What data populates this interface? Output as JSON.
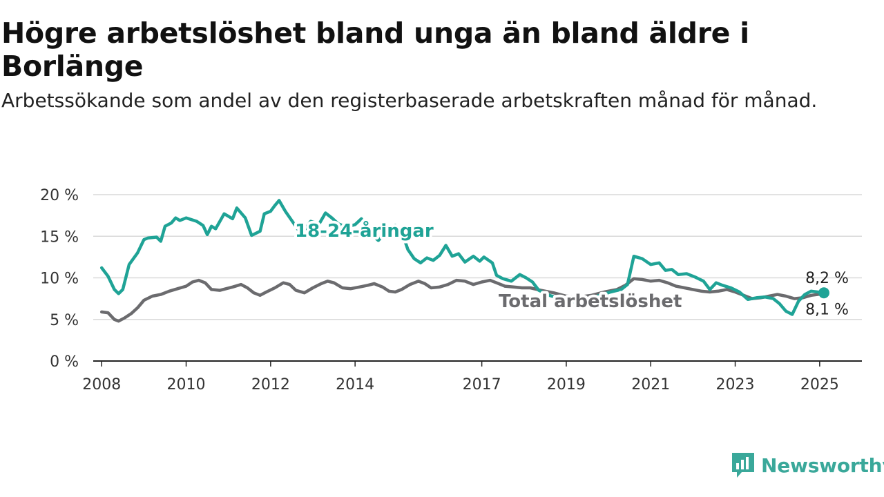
{
  "title": "Högre arbetslöshet bland unga än bland äldre i Borlänge",
  "subtitle": "Arbetssökande som andel av den registerbaserade arbetskraften månad för månad.",
  "logo": {
    "text": "Newsworthy",
    "icon": "newsworthy-logo-icon",
    "color": "#3aa89a"
  },
  "chart_data": {
    "type": "line",
    "title": "Högre arbetslöshet bland unga än bland äldre i Borlänge",
    "subtitle": "Arbetssökande som andel av den registerbaserade arbetskraften månad för månad.",
    "ylim": [
      0,
      20
    ],
    "yticks": [
      0,
      5,
      10,
      15,
      20
    ],
    "ytick_labels": [
      "0 %",
      "5 %",
      "10 %",
      "15 %",
      "20 %"
    ],
    "xlim": [
      2007.8,
      2026.0
    ],
    "xticks": [
      2008,
      2010,
      2012,
      2014,
      2017,
      2019,
      2021,
      2023,
      2025
    ],
    "xtick_labels": [
      "2008",
      "2010",
      "2012",
      "2014",
      "2017",
      "2019",
      "2021",
      "2023",
      "2025"
    ],
    "grid": true,
    "series": [
      {
        "name": "18-24-åringar",
        "color": "#1fa396",
        "end_label": "8,2 %",
        "points": [
          [
            2008.0,
            11.2
          ],
          [
            2008.15,
            10.2
          ],
          [
            2008.3,
            8.6
          ],
          [
            2008.4,
            8.1
          ],
          [
            2008.5,
            8.6
          ],
          [
            2008.65,
            11.6
          ],
          [
            2008.85,
            13.0
          ],
          [
            2009.0,
            14.6
          ],
          [
            2009.1,
            14.8
          ],
          [
            2009.3,
            14.9
          ],
          [
            2009.4,
            14.4
          ],
          [
            2009.5,
            16.2
          ],
          [
            2009.65,
            16.6
          ],
          [
            2009.75,
            17.2
          ],
          [
            2009.85,
            16.9
          ],
          [
            2010.0,
            17.2
          ],
          [
            2010.25,
            16.8
          ],
          [
            2010.4,
            16.3
          ],
          [
            2010.5,
            15.2
          ],
          [
            2010.6,
            16.2
          ],
          [
            2010.7,
            15.9
          ],
          [
            2010.9,
            17.7
          ],
          [
            2011.1,
            17.1
          ],
          [
            2011.2,
            18.4
          ],
          [
            2011.4,
            17.2
          ],
          [
            2011.55,
            15.1
          ],
          [
            2011.75,
            15.6
          ],
          [
            2011.85,
            17.7
          ],
          [
            2012.0,
            18.0
          ],
          [
            2012.1,
            18.7
          ],
          [
            2012.2,
            19.3
          ],
          [
            2012.35,
            18.0
          ],
          [
            2012.5,
            16.9
          ],
          [
            2012.65,
            15.8
          ],
          [
            2012.75,
            15.4
          ],
          [
            2012.95,
            16.8
          ],
          [
            2013.15,
            16.5
          ],
          [
            2013.3,
            17.8
          ],
          [
            2013.45,
            17.2
          ],
          [
            2013.6,
            16.5
          ],
          [
            2013.8,
            16.1
          ],
          [
            2014.0,
            16.4
          ],
          [
            2014.15,
            17.1
          ],
          [
            2014.35,
            15.4
          ],
          [
            2014.55,
            14.5
          ],
          [
            2014.75,
            15.6
          ],
          [
            2014.95,
            16.3
          ],
          [
            2015.1,
            15.6
          ],
          [
            2015.25,
            13.4
          ],
          [
            2015.4,
            12.3
          ],
          [
            2015.55,
            11.8
          ],
          [
            2015.7,
            12.4
          ],
          [
            2015.85,
            12.1
          ],
          [
            2016.0,
            12.7
          ],
          [
            2016.15,
            13.9
          ],
          [
            2016.3,
            12.6
          ],
          [
            2016.45,
            12.9
          ],
          [
            2016.6,
            11.9
          ],
          [
            2016.8,
            12.6
          ],
          [
            2016.95,
            12.0
          ],
          [
            2017.05,
            12.5
          ],
          [
            2017.25,
            11.8
          ],
          [
            2017.35,
            10.3
          ],
          [
            2017.5,
            9.9
          ],
          [
            2017.7,
            9.6
          ],
          [
            2017.9,
            10.4
          ],
          [
            2018.05,
            10.0
          ],
          [
            2018.2,
            9.5
          ],
          [
            2018.35,
            8.5
          ],
          [
            2018.6,
            7.9
          ],
          [
            2018.9,
            7.4
          ],
          [
            2019.2,
            7.1
          ],
          [
            2019.5,
            7.4
          ],
          [
            2019.8,
            7.9
          ],
          [
            2020.05,
            8.3
          ],
          [
            2020.3,
            8.6
          ],
          [
            2020.45,
            9.2
          ],
          [
            2020.6,
            12.6
          ],
          [
            2020.8,
            12.3
          ],
          [
            2021.0,
            11.6
          ],
          [
            2021.2,
            11.8
          ],
          [
            2021.35,
            10.9
          ],
          [
            2021.5,
            11.0
          ],
          [
            2021.65,
            10.4
          ],
          [
            2021.85,
            10.5
          ],
          [
            2022.05,
            10.1
          ],
          [
            2022.25,
            9.6
          ],
          [
            2022.4,
            8.6
          ],
          [
            2022.55,
            9.4
          ],
          [
            2022.7,
            9.1
          ],
          [
            2022.9,
            8.8
          ],
          [
            2023.1,
            8.3
          ],
          [
            2023.3,
            7.4
          ],
          [
            2023.5,
            7.6
          ],
          [
            2023.7,
            7.7
          ],
          [
            2023.9,
            7.5
          ],
          [
            2024.05,
            6.9
          ],
          [
            2024.2,
            6.0
          ],
          [
            2024.35,
            5.6
          ],
          [
            2024.5,
            7.2
          ],
          [
            2024.65,
            8.0
          ],
          [
            2024.8,
            8.4
          ],
          [
            2024.95,
            8.3
          ],
          [
            2025.1,
            8.2
          ]
        ]
      },
      {
        "name": "Total arbetslöshet",
        "color": "#6b6b6e",
        "end_label": "8,1 %",
        "points": [
          [
            2008.0,
            5.9
          ],
          [
            2008.15,
            5.8
          ],
          [
            2008.3,
            5.0
          ],
          [
            2008.4,
            4.8
          ],
          [
            2008.55,
            5.2
          ],
          [
            2008.7,
            5.7
          ],
          [
            2008.85,
            6.4
          ],
          [
            2009.0,
            7.3
          ],
          [
            2009.2,
            7.8
          ],
          [
            2009.4,
            8.0
          ],
          [
            2009.6,
            8.4
          ],
          [
            2009.8,
            8.7
          ],
          [
            2010.0,
            9.0
          ],
          [
            2010.15,
            9.5
          ],
          [
            2010.3,
            9.7
          ],
          [
            2010.45,
            9.4
          ],
          [
            2010.6,
            8.6
          ],
          [
            2010.8,
            8.5
          ],
          [
            2010.95,
            8.7
          ],
          [
            2011.1,
            8.9
          ],
          [
            2011.3,
            9.2
          ],
          [
            2011.45,
            8.8
          ],
          [
            2011.6,
            8.2
          ],
          [
            2011.75,
            7.9
          ],
          [
            2011.9,
            8.3
          ],
          [
            2012.1,
            8.8
          ],
          [
            2012.3,
            9.4
          ],
          [
            2012.45,
            9.2
          ],
          [
            2012.6,
            8.5
          ],
          [
            2012.8,
            8.2
          ],
          [
            2013.0,
            8.8
          ],
          [
            2013.2,
            9.3
          ],
          [
            2013.35,
            9.6
          ],
          [
            2013.5,
            9.4
          ],
          [
            2013.7,
            8.8
          ],
          [
            2013.9,
            8.7
          ],
          [
            2014.1,
            8.9
          ],
          [
            2014.3,
            9.1
          ],
          [
            2014.45,
            9.3
          ],
          [
            2014.65,
            8.9
          ],
          [
            2014.8,
            8.4
          ],
          [
            2014.95,
            8.3
          ],
          [
            2015.1,
            8.6
          ],
          [
            2015.3,
            9.2
          ],
          [
            2015.5,
            9.6
          ],
          [
            2015.65,
            9.3
          ],
          [
            2015.8,
            8.8
          ],
          [
            2016.0,
            8.9
          ],
          [
            2016.2,
            9.2
          ],
          [
            2016.4,
            9.7
          ],
          [
            2016.6,
            9.6
          ],
          [
            2016.8,
            9.2
          ],
          [
            2017.0,
            9.5
          ],
          [
            2017.2,
            9.7
          ],
          [
            2017.35,
            9.4
          ],
          [
            2017.55,
            9.0
          ],
          [
            2017.75,
            8.9
          ],
          [
            2017.95,
            8.8
          ],
          [
            2018.15,
            8.8
          ],
          [
            2018.4,
            8.5
          ],
          [
            2018.7,
            8.2
          ],
          [
            2019.0,
            7.8
          ],
          [
            2019.3,
            7.7
          ],
          [
            2019.6,
            7.9
          ],
          [
            2019.9,
            8.3
          ],
          [
            2020.2,
            8.6
          ],
          [
            2020.4,
            9.1
          ],
          [
            2020.6,
            9.9
          ],
          [
            2020.8,
            9.8
          ],
          [
            2021.0,
            9.6
          ],
          [
            2021.2,
            9.7
          ],
          [
            2021.4,
            9.4
          ],
          [
            2021.6,
            9.0
          ],
          [
            2021.8,
            8.8
          ],
          [
            2022.0,
            8.6
          ],
          [
            2022.2,
            8.4
          ],
          [
            2022.4,
            8.3
          ],
          [
            2022.6,
            8.4
          ],
          [
            2022.8,
            8.6
          ],
          [
            2023.0,
            8.3
          ],
          [
            2023.2,
            7.9
          ],
          [
            2023.4,
            7.5
          ],
          [
            2023.6,
            7.6
          ],
          [
            2023.8,
            7.8
          ],
          [
            2024.0,
            8.0
          ],
          [
            2024.2,
            7.8
          ],
          [
            2024.4,
            7.5
          ],
          [
            2024.6,
            7.6
          ],
          [
            2024.8,
            7.9
          ],
          [
            2025.1,
            8.1
          ]
        ]
      }
    ]
  }
}
